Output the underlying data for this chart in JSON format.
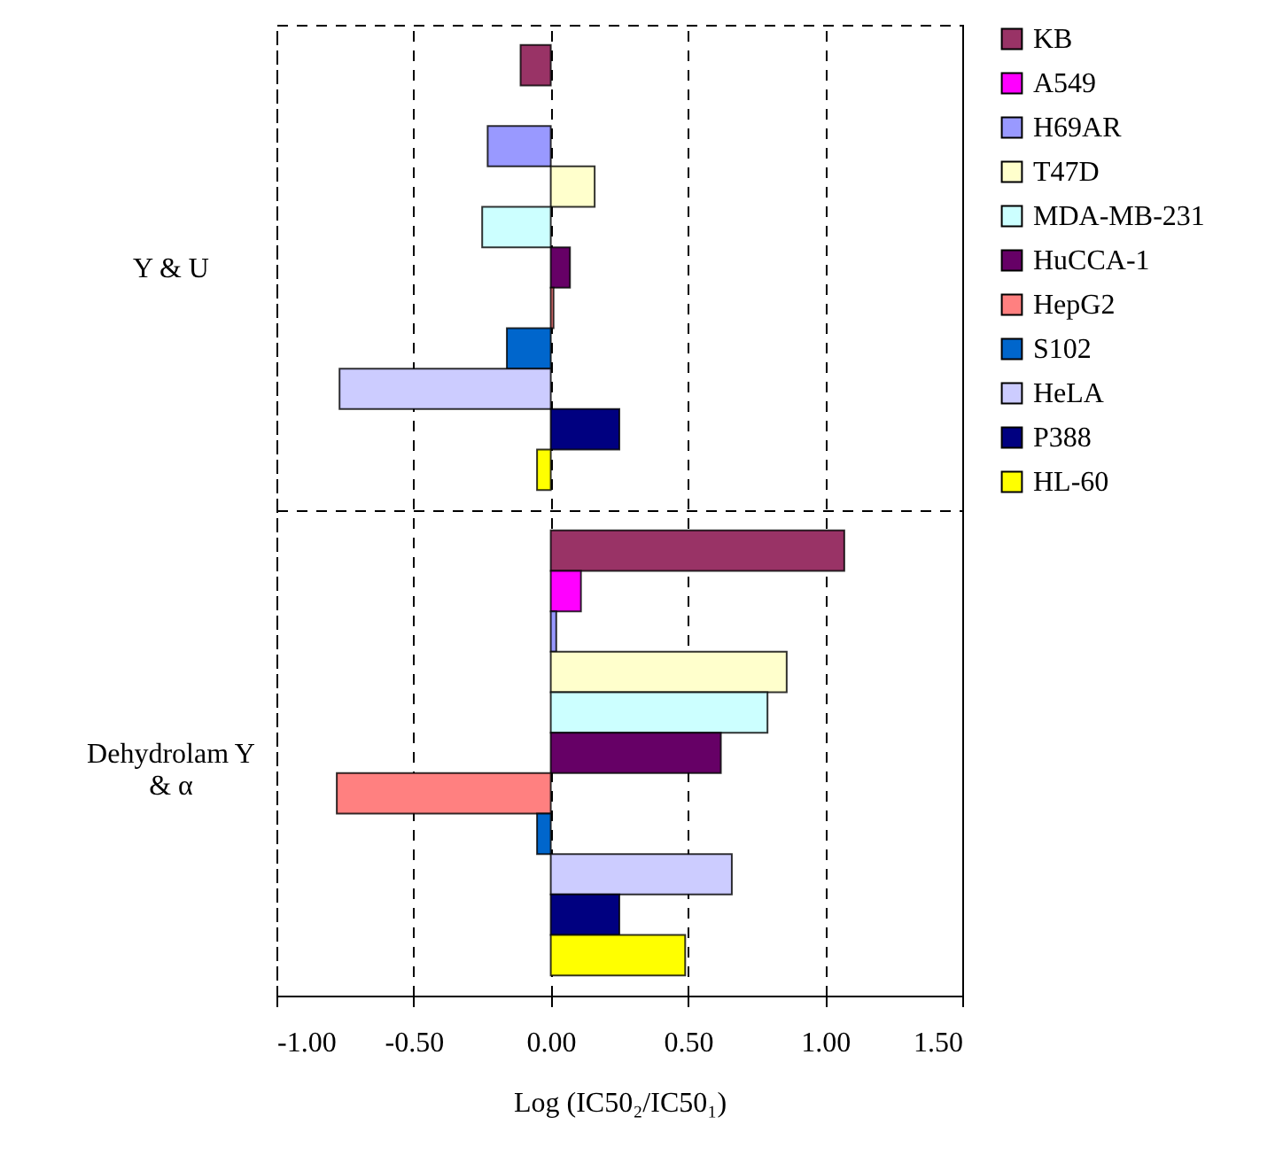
{
  "chart_data": {
    "type": "bar",
    "orientation": "horizontal",
    "xlabel": "Log (IC50₂/IC50₁)",
    "categories": [
      "Y & U",
      "Dehydrolam Y & α"
    ],
    "series": [
      {
        "name": "KB",
        "color": "#993366",
        "values": [
          -0.11,
          1.07
        ]
      },
      {
        "name": "A549",
        "color": "#ff00ff",
        "values": [
          null,
          0.11
        ]
      },
      {
        "name": "H69AR",
        "color": "#9999ff",
        "values": [
          -0.23,
          0.02
        ]
      },
      {
        "name": "T47D",
        "color": "#ffffcc",
        "values": [
          0.16,
          0.86
        ]
      },
      {
        "name": "MDA-MB-231",
        "color": "#ccffff",
        "values": [
          -0.25,
          0.79
        ]
      },
      {
        "name": "HuCCA-1",
        "color": "#660066",
        "values": [
          0.07,
          0.62
        ]
      },
      {
        "name": "HepG2",
        "color": "#ff8080",
        "values": [
          0.01,
          -0.78
        ]
      },
      {
        "name": "S102",
        "color": "#0066cc",
        "values": [
          -0.16,
          -0.05
        ]
      },
      {
        "name": "HeLA",
        "color": "#ccccff",
        "values": [
          -0.77,
          0.66
        ]
      },
      {
        "name": "P388",
        "color": "#000080",
        "values": [
          0.25,
          0.25
        ]
      },
      {
        "name": "HL-60",
        "color": "#ffff00",
        "values": [
          -0.05,
          0.49
        ]
      }
    ],
    "xlim": [
      -1,
      1.5
    ],
    "xticks": [
      {
        "value": -1,
        "label": "-1.00"
      },
      {
        "value": -0.5,
        "label": "-0.50"
      },
      {
        "value": 0,
        "label": "0.00"
      },
      {
        "value": 0.5,
        "label": "0.50"
      },
      {
        "value": 1,
        "label": "1.00"
      },
      {
        "value": 1.5,
        "label": "1.50"
      }
    ],
    "grid": true,
    "legend": "right"
  }
}
